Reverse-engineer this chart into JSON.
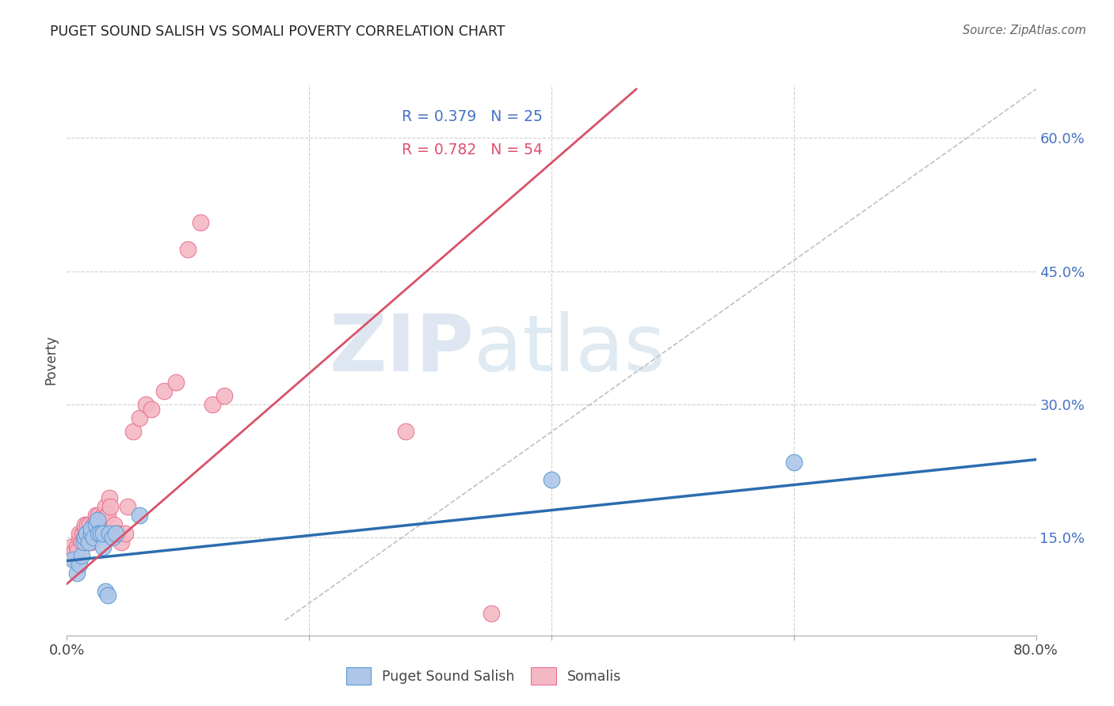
{
  "title": "PUGET SOUND SALISH VS SOMALI POVERTY CORRELATION CHART",
  "source": "Source: ZipAtlas.com",
  "ylabel": "Poverty",
  "xlim": [
    0.0,
    0.8
  ],
  "ylim": [
    0.04,
    0.66
  ],
  "xtick_positions": [
    0.0,
    0.2,
    0.4,
    0.6,
    0.8
  ],
  "xtick_labels": [
    "0.0%",
    "",
    "",
    "",
    "80.0%"
  ],
  "ytick_vals_right": [
    0.6,
    0.45,
    0.3,
    0.15
  ],
  "ytick_labels_right": [
    "60.0%",
    "45.0%",
    "30.0%",
    "15.0%"
  ],
  "watermark_zip": "ZIP",
  "watermark_atlas": "atlas",
  "legend_r_blue": "R = 0.379",
  "legend_n_blue": "N = 25",
  "legend_r_pink": "R = 0.782",
  "legend_n_pink": "N = 54",
  "blue_fill": "#aec6e8",
  "pink_fill": "#f4b8c4",
  "blue_edge": "#5b9bd5",
  "pink_edge": "#e87090",
  "blue_line_color": "#2b6cb0",
  "pink_line_color": "#d9526a",
  "gray_line_color": "#c0c0c0",
  "legend_label_blue": "Puget Sound Salish",
  "legend_label_pink": "Somalis",
  "blue_label_color": "#4472c4",
  "pink_label_color": "#e05070",
  "blue_scatter_x": [
    0.005,
    0.008,
    0.01,
    0.012,
    0.014,
    0.015,
    0.016,
    0.018,
    0.02,
    0.02,
    0.022,
    0.024,
    0.025,
    0.026,
    0.028,
    0.03,
    0.03,
    0.032,
    0.034,
    0.035,
    0.038,
    0.04,
    0.06,
    0.4,
    0.6
  ],
  "blue_scatter_y": [
    0.125,
    0.11,
    0.12,
    0.13,
    0.145,
    0.15,
    0.155,
    0.145,
    0.155,
    0.16,
    0.15,
    0.165,
    0.17,
    0.155,
    0.155,
    0.14,
    0.155,
    0.09,
    0.085,
    0.155,
    0.15,
    0.155,
    0.175,
    0.215,
    0.235
  ],
  "pink_scatter_x": [
    0.002,
    0.004,
    0.006,
    0.007,
    0.008,
    0.009,
    0.01,
    0.01,
    0.012,
    0.013,
    0.014,
    0.015,
    0.015,
    0.016,
    0.017,
    0.018,
    0.018,
    0.019,
    0.02,
    0.02,
    0.022,
    0.022,
    0.024,
    0.025,
    0.025,
    0.026,
    0.028,
    0.028,
    0.03,
    0.03,
    0.032,
    0.033,
    0.034,
    0.035,
    0.036,
    0.038,
    0.039,
    0.04,
    0.042,
    0.045,
    0.048,
    0.05,
    0.055,
    0.06,
    0.065,
    0.07,
    0.08,
    0.09,
    0.1,
    0.11,
    0.12,
    0.13,
    0.28,
    0.35
  ],
  "pink_scatter_y": [
    0.13,
    0.14,
    0.135,
    0.125,
    0.14,
    0.135,
    0.15,
    0.155,
    0.145,
    0.155,
    0.15,
    0.16,
    0.165,
    0.155,
    0.165,
    0.155,
    0.145,
    0.165,
    0.155,
    0.145,
    0.165,
    0.155,
    0.175,
    0.17,
    0.16,
    0.175,
    0.165,
    0.155,
    0.165,
    0.175,
    0.185,
    0.175,
    0.175,
    0.195,
    0.185,
    0.155,
    0.165,
    0.155,
    0.155,
    0.145,
    0.155,
    0.185,
    0.27,
    0.285,
    0.3,
    0.295,
    0.315,
    0.325,
    0.475,
    0.505,
    0.3,
    0.31,
    0.27,
    0.065
  ],
  "blue_line_x": [
    0.0,
    0.8
  ],
  "blue_line_y": [
    0.124,
    0.238
  ],
  "pink_line_x": [
    0.0,
    0.47
  ],
  "pink_line_y": [
    0.098,
    0.655
  ],
  "gray_line_x": [
    0.18,
    0.8
  ],
  "gray_line_y": [
    0.057,
    0.655
  ],
  "background_color": "#ffffff",
  "grid_color": "#d0d0d0"
}
